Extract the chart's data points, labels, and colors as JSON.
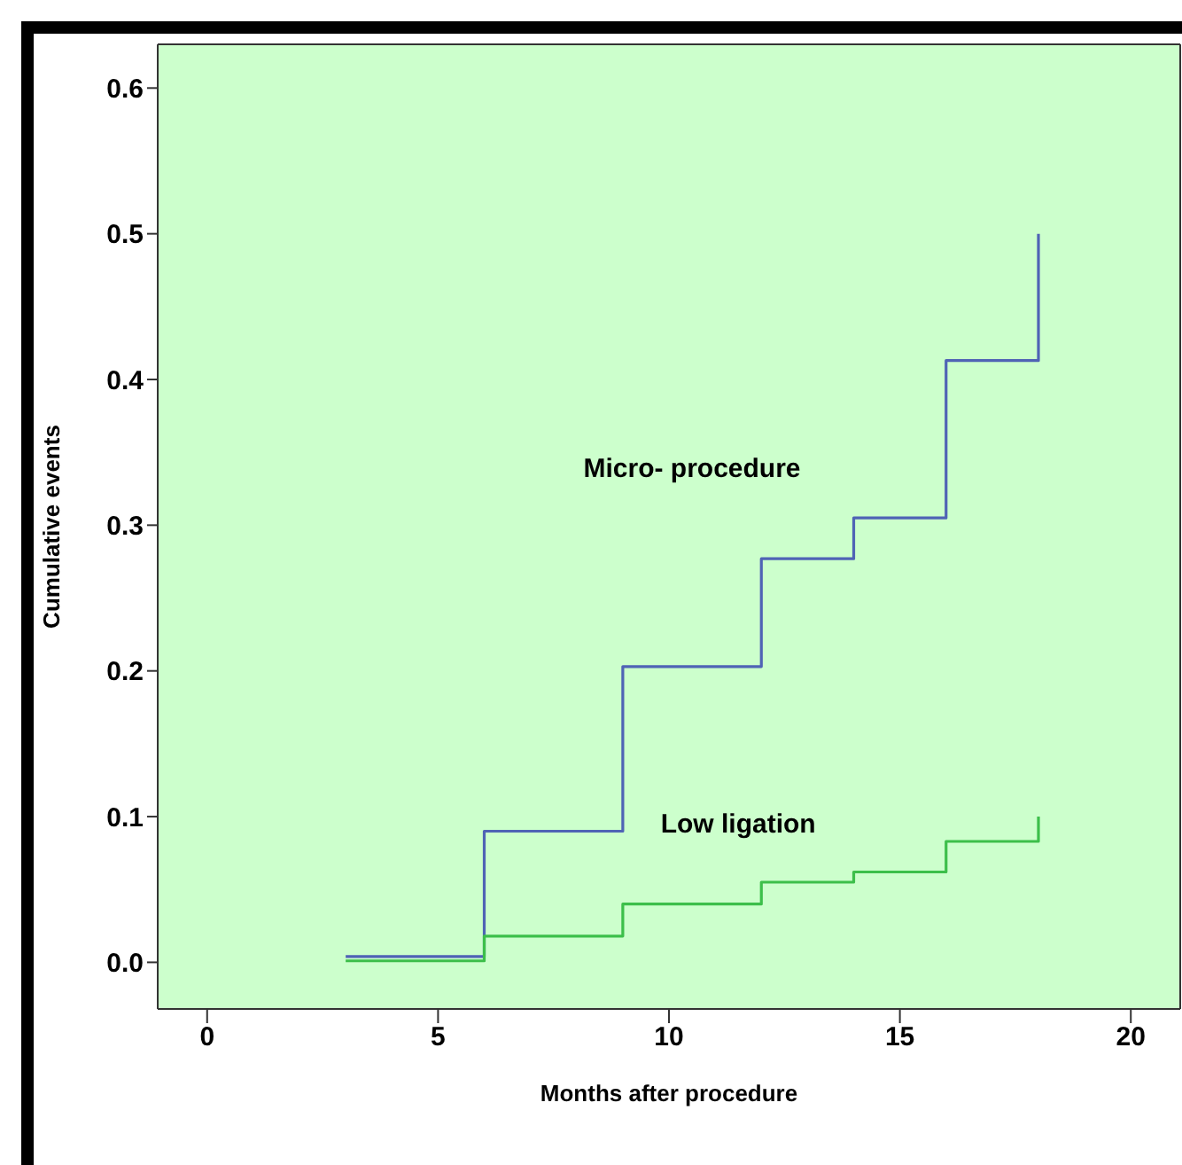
{
  "chart_data": {
    "type": "step",
    "xlabel": "Months after procedure",
    "ylabel": "Cumulative events",
    "series": [
      {
        "name": "Micro- procedure",
        "color": "#4f63b5",
        "x": [
          3,
          6,
          9,
          12,
          14,
          16,
          18,
          18
        ],
        "values": [
          0.004,
          0.09,
          0.203,
          0.277,
          0.305,
          0.413,
          0.413,
          0.5
        ]
      },
      {
        "name": "Low ligation",
        "color": "#3cbf4a",
        "x": [
          3,
          6,
          9,
          12,
          14,
          16,
          18,
          18
        ],
        "values": [
          0.001,
          0.018,
          0.04,
          0.055,
          0.062,
          0.083,
          0.083,
          0.1
        ]
      }
    ],
    "xlim": [
      -1.07,
      21.07
    ],
    "xticks": [
      0,
      5,
      10,
      15,
      20
    ],
    "ylim": [
      -0.032,
      0.63
    ],
    "yticks": [
      {
        "value": 0,
        "label": "0.0"
      },
      {
        "value": 0.1,
        "label": "0.1"
      },
      {
        "value": 0.2,
        "label": "0.2"
      },
      {
        "value": 0.3,
        "label": "0.3"
      },
      {
        "value": 0.4,
        "label": "0.4"
      },
      {
        "value": 0.5,
        "label": "0.5"
      },
      {
        "value": 0.6,
        "label": "0.6"
      }
    ]
  }
}
